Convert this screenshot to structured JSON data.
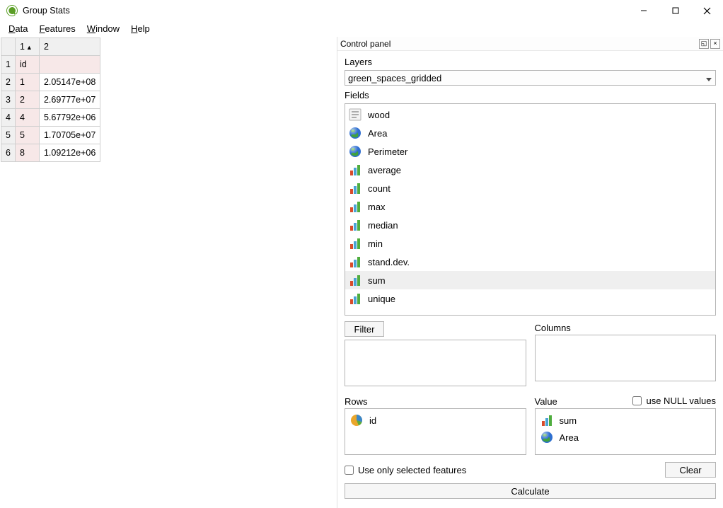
{
  "window": {
    "title": "Group Stats"
  },
  "menubar": [
    "Data",
    "Features",
    "Window",
    "Help"
  ],
  "results_table": {
    "col_headers": [
      "1",
      "2"
    ],
    "sort_col": 1,
    "sort_dir": "asc",
    "rows": [
      {
        "n": "1",
        "c1": "id",
        "c2": "",
        "c1_pink": true,
        "c2_pink": true
      },
      {
        "n": "2",
        "c1": "1",
        "c2": "2.05147e+08",
        "c1_pink": true,
        "c2_pink": false
      },
      {
        "n": "3",
        "c1": "2",
        "c2": "2.69777e+07",
        "c1_pink": true,
        "c2_pink": false
      },
      {
        "n": "4",
        "c1": "4",
        "c2": "5.67792e+06",
        "c1_pink": true,
        "c2_pink": false
      },
      {
        "n": "5",
        "c1": "5",
        "c2": "1.70705e+07",
        "c1_pink": true,
        "c2_pink": false
      },
      {
        "n": "6",
        "c1": "8",
        "c2": "1.09212e+06",
        "c1_pink": true,
        "c2_pink": false
      }
    ]
  },
  "control_panel": {
    "title": "Control panel",
    "layers_label": "Layers",
    "layer_selected": "green_spaces_gridded",
    "fields_label": "Fields",
    "fields": [
      {
        "label": "wood",
        "icon": "text",
        "selected": false
      },
      {
        "label": "Area",
        "icon": "globe",
        "selected": false
      },
      {
        "label": "Perimeter",
        "icon": "globe",
        "selected": false
      },
      {
        "label": "average",
        "icon": "bars",
        "selected": false
      },
      {
        "label": "count",
        "icon": "bars",
        "selected": false
      },
      {
        "label": "max",
        "icon": "bars",
        "selected": false
      },
      {
        "label": "median",
        "icon": "bars",
        "selected": false
      },
      {
        "label": "min",
        "icon": "bars",
        "selected": false
      },
      {
        "label": "stand.dev.",
        "icon": "bars",
        "selected": false
      },
      {
        "label": "sum",
        "icon": "bars",
        "selected": true
      },
      {
        "label": "unique",
        "icon": "bars",
        "selected": false
      }
    ],
    "filter_label": "Filter",
    "columns_label": "Columns",
    "rows_label": "Rows",
    "value_label": "Value",
    "use_null_label": "use NULL values",
    "rows_zone": [
      {
        "label": "id",
        "icon": "pie"
      }
    ],
    "value_zone": [
      {
        "label": "sum",
        "icon": "bars"
      },
      {
        "label": "Area",
        "icon": "globe"
      }
    ],
    "use_selected_label": "Use only selected features",
    "clear_label": "Clear",
    "calculate_label": "Calculate"
  }
}
